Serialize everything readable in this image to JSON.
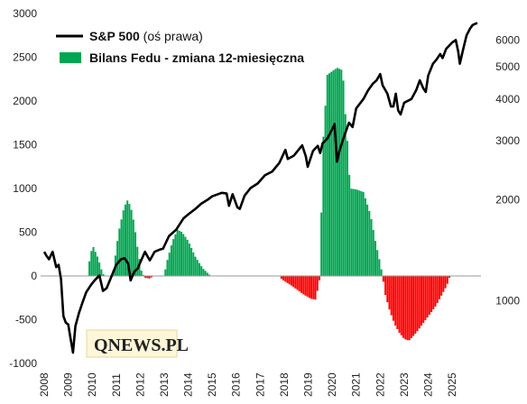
{
  "chart_data": {
    "type": "bar+line",
    "legend": {
      "position": "top-left",
      "items": [
        {
          "label": "S&P 500",
          "note": "(oś prawa)",
          "kind": "line",
          "color": "#000000"
        },
        {
          "label": "Bilans Fedu - zmiana 12-miesięczna",
          "note": "",
          "kind": "bar",
          "color": "#00a651"
        }
      ]
    },
    "left_axis": {
      "range": [
        -1000,
        3000
      ],
      "ticks": [
        3000,
        2500,
        2000,
        1500,
        1000,
        500,
        0,
        -500,
        -1000
      ],
      "tick_labels": [
        "3000",
        "2500",
        "2000",
        "1500",
        "1000",
        "500",
        "0",
        "-500",
        "-1000"
      ]
    },
    "right_axis": {
      "scale": "log",
      "range": [
        650,
        7200
      ],
      "ticks": [
        6000,
        5000,
        4000,
        3000,
        2000,
        1000
      ],
      "tick_labels": [
        "6000",
        "5000",
        "4000",
        "3000",
        "2000",
        "1000"
      ]
    },
    "x_axis": {
      "range": [
        2007.85,
        2026.2
      ],
      "years": [
        2008,
        2009,
        2010,
        2011,
        2012,
        2013,
        2014,
        2015,
        2016,
        2017,
        2018,
        2019,
        2020,
        2021,
        2022,
        2023,
        2024,
        2025
      ],
      "tick_labels": [
        "2008",
        "2009",
        "2010",
        "2011",
        "2012",
        "2013",
        "2014",
        "2015",
        "2016",
        "2017",
        "2018",
        "2019",
        "2020",
        "2021",
        "2022",
        "2023",
        "2024",
        "2025"
      ]
    },
    "bars": {
      "name": "Bilans Fedu - zmiana 12-miesięczna",
      "positive_color": "#00a651",
      "negative_color": "#ff0000",
      "shape_points": [
        [
          2009.85,
          0
        ],
        [
          2009.9,
          250
        ],
        [
          2010.05,
          330
        ],
        [
          2010.25,
          200
        ],
        [
          2010.4,
          60
        ],
        [
          2010.5,
          0
        ],
        [
          2010.85,
          0
        ],
        [
          2010.95,
          200
        ],
        [
          2011.1,
          500
        ],
        [
          2011.3,
          750
        ],
        [
          2011.45,
          870
        ],
        [
          2011.6,
          800
        ],
        [
          2011.75,
          600
        ],
        [
          2011.9,
          300
        ],
        [
          2012.05,
          60
        ],
        [
          2012.15,
          0
        ],
        [
          2012.2,
          -20
        ],
        [
          2012.4,
          -30
        ],
        [
          2012.55,
          0
        ],
        [
          2013.0,
          0
        ],
        [
          2013.1,
          150
        ],
        [
          2013.35,
          400
        ],
        [
          2013.55,
          530
        ],
        [
          2013.75,
          500
        ],
        [
          2014.0,
          400
        ],
        [
          2014.3,
          220
        ],
        [
          2014.6,
          90
        ],
        [
          2014.9,
          10
        ],
        [
          2015.0,
          0
        ],
        [
          2017.8,
          0
        ],
        [
          2017.9,
          -40
        ],
        [
          2018.3,
          -110
        ],
        [
          2018.8,
          -210
        ],
        [
          2019.1,
          -260
        ],
        [
          2019.3,
          -270
        ],
        [
          2019.4,
          -150
        ],
        [
          2019.5,
          0
        ],
        [
          2019.6,
          1450
        ],
        [
          2019.8,
          2300
        ],
        [
          2020.2,
          2380
        ],
        [
          2020.45,
          2350
        ],
        [
          2020.5,
          2000
        ],
        [
          2020.6,
          1700
        ],
        [
          2020.75,
          1000
        ],
        [
          2021.0,
          990
        ],
        [
          2021.3,
          960
        ],
        [
          2021.6,
          700
        ],
        [
          2021.8,
          400
        ],
        [
          2022.0,
          150
        ],
        [
          2022.1,
          0
        ],
        [
          2022.2,
          -200
        ],
        [
          2022.4,
          -400
        ],
        [
          2022.6,
          -550
        ],
        [
          2022.8,
          -650
        ],
        [
          2023.0,
          -720
        ],
        [
          2023.2,
          -740
        ],
        [
          2023.5,
          -650
        ],
        [
          2023.9,
          -500
        ],
        [
          2024.3,
          -350
        ],
        [
          2024.7,
          -150
        ],
        [
          2024.85,
          -60
        ],
        [
          2024.9,
          0
        ]
      ]
    },
    "sp500": {
      "name": "S&P 500",
      "axis": "right",
      "color": "#000000",
      "points": [
        [
          2008.0,
          1400
        ],
        [
          2008.1,
          1360
        ],
        [
          2008.2,
          1330
        ],
        [
          2008.35,
          1400
        ],
        [
          2008.5,
          1260
        ],
        [
          2008.6,
          1280
        ],
        [
          2008.7,
          1160
        ],
        [
          2008.8,
          900
        ],
        [
          2008.9,
          860
        ],
        [
          2009.0,
          850
        ],
        [
          2009.1,
          770
        ],
        [
          2009.2,
          700
        ],
        [
          2009.3,
          840
        ],
        [
          2009.45,
          920
        ],
        [
          2009.6,
          990
        ],
        [
          2009.75,
          1060
        ],
        [
          2009.95,
          1115
        ],
        [
          2010.1,
          1150
        ],
        [
          2010.3,
          1190
        ],
        [
          2010.45,
          1070
        ],
        [
          2010.6,
          1090
        ],
        [
          2010.8,
          1180
        ],
        [
          2011.0,
          1280
        ],
        [
          2011.2,
          1330
        ],
        [
          2011.35,
          1340
        ],
        [
          2011.5,
          1290
        ],
        [
          2011.6,
          1150
        ],
        [
          2011.75,
          1220
        ],
        [
          2011.9,
          1250
        ],
        [
          2012.0,
          1300
        ],
        [
          2012.2,
          1400
        ],
        [
          2012.4,
          1320
        ],
        [
          2012.6,
          1400
        ],
        [
          2012.8,
          1420
        ],
        [
          2012.95,
          1430
        ],
        [
          2013.2,
          1560
        ],
        [
          2013.5,
          1630
        ],
        [
          2013.8,
          1760
        ],
        [
          2014.0,
          1810
        ],
        [
          2014.3,
          1880
        ],
        [
          2014.55,
          1950
        ],
        [
          2014.8,
          2000
        ],
        [
          2015.0,
          2050
        ],
        [
          2015.4,
          2100
        ],
        [
          2015.6,
          2090
        ],
        [
          2015.7,
          1920
        ],
        [
          2015.85,
          2080
        ],
        [
          2016.05,
          1900
        ],
        [
          2016.15,
          1880
        ],
        [
          2016.35,
          2060
        ],
        [
          2016.6,
          2170
        ],
        [
          2016.9,
          2240
        ],
        [
          2017.2,
          2370
        ],
        [
          2017.5,
          2430
        ],
        [
          2017.8,
          2580
        ],
        [
          2018.05,
          2820
        ],
        [
          2018.15,
          2650
        ],
        [
          2018.4,
          2710
        ],
        [
          2018.75,
          2910
        ],
        [
          2018.9,
          2700
        ],
        [
          2018.98,
          2510
        ],
        [
          2019.2,
          2800
        ],
        [
          2019.4,
          2900
        ],
        [
          2019.5,
          2760
        ],
        [
          2019.6,
          2950
        ],
        [
          2019.8,
          3050
        ],
        [
          2020.0,
          3250
        ],
        [
          2020.1,
          3370
        ],
        [
          2020.2,
          2600
        ],
        [
          2020.3,
          2800
        ],
        [
          2020.5,
          3100
        ],
        [
          2020.7,
          3400
        ],
        [
          2020.85,
          3300
        ],
        [
          2021.0,
          3750
        ],
        [
          2021.3,
          4000
        ],
        [
          2021.5,
          4250
        ],
        [
          2021.7,
          4450
        ],
        [
          2021.85,
          4550
        ],
        [
          2022.0,
          4750
        ],
        [
          2022.1,
          4400
        ],
        [
          2022.3,
          4150
        ],
        [
          2022.45,
          3800
        ],
        [
          2022.55,
          3800
        ],
        [
          2022.65,
          4150
        ],
        [
          2022.75,
          3700
        ],
        [
          2022.85,
          3600
        ],
        [
          2023.0,
          3900
        ],
        [
          2023.3,
          4000
        ],
        [
          2023.5,
          4250
        ],
        [
          2023.65,
          4550
        ],
        [
          2023.8,
          4300
        ],
        [
          2023.9,
          4200
        ],
        [
          2024.0,
          4700
        ],
        [
          2024.2,
          5100
        ],
        [
          2024.35,
          5250
        ],
        [
          2024.5,
          5450
        ],
        [
          2024.6,
          5300
        ],
        [
          2024.75,
          5650
        ],
        [
          2025.0,
          5900
        ],
        [
          2025.15,
          6000
        ],
        [
          2025.25,
          5550
        ],
        [
          2025.32,
          5100
        ],
        [
          2025.45,
          5600
        ],
        [
          2025.6,
          6200
        ],
        [
          2025.75,
          6500
        ],
        [
          2025.85,
          6650
        ],
        [
          2025.95,
          6700
        ],
        [
          2026.05,
          6750
        ]
      ]
    }
  },
  "watermark": {
    "text": "QNEWS.PL"
  }
}
